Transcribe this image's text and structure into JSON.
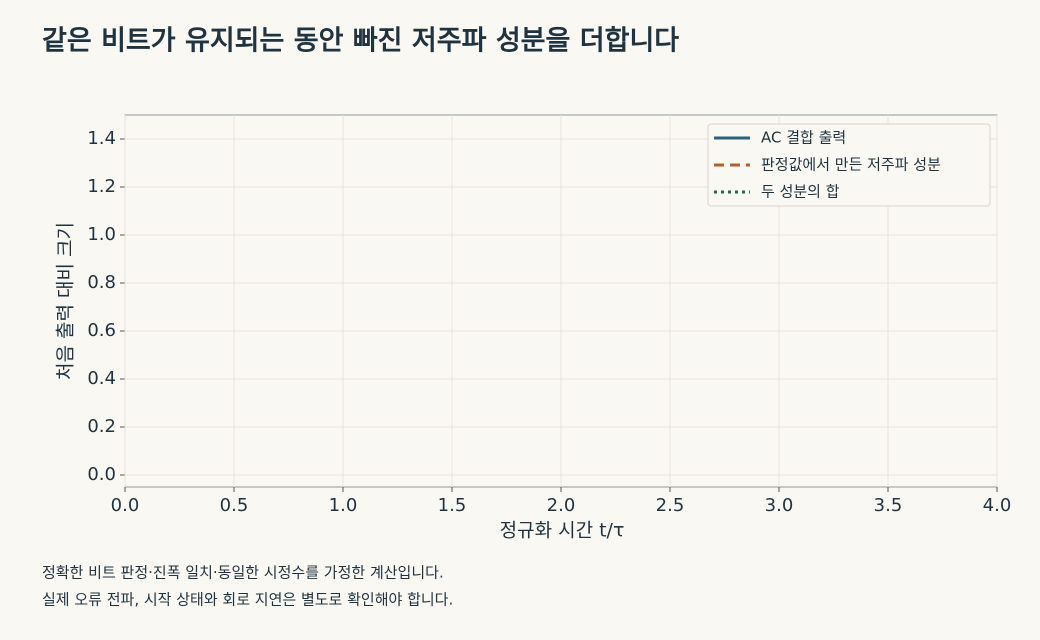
{
  "chart_data": {
    "type": "line",
    "title": "같은 비트가 유지되는 동안 빠진 저주파 성분을 더합니다",
    "xlabel": "정규화 시간 t/τ",
    "ylabel": "처음 출력 대비 크기",
    "x": [],
    "series": [
      {
        "name": "AC 결합 출력",
        "color": "#2b6478",
        "dash": "solid",
        "values": []
      },
      {
        "name": "판정값에서 만든 저주파 성분",
        "color": "#b5602a",
        "dash": "dashed",
        "values": []
      },
      {
        "name": "두 성분의 합",
        "color": "#1f6b4a",
        "dash": "dotted",
        "values": []
      }
    ],
    "xlim": [
      0,
      4
    ],
    "ylim": [
      -0.05,
      1.5
    ],
    "xticks": [
      {
        "value": 0,
        "label": "0.0"
      },
      {
        "value": 0.5,
        "label": "0.5"
      },
      {
        "value": 1,
        "label": "1.0"
      },
      {
        "value": 1.5,
        "label": "1.5"
      },
      {
        "value": 2,
        "label": "2.0"
      },
      {
        "value": 2.5,
        "label": "2.5"
      },
      {
        "value": 3,
        "label": "3.0"
      },
      {
        "value": 3.5,
        "label": "3.5"
      },
      {
        "value": 4,
        "label": "4.0"
      }
    ],
    "yticks": [
      {
        "value": 0,
        "label": "0.0"
      },
      {
        "value": 0.2,
        "label": "0.2"
      },
      {
        "value": 0.4,
        "label": "0.4"
      },
      {
        "value": 0.6,
        "label": "0.6"
      },
      {
        "value": 0.8,
        "label": "0.8"
      },
      {
        "value": 1,
        "label": "1.0"
      },
      {
        "value": 1.2,
        "label": "1.2"
      },
      {
        "value": 1.4,
        "label": "1.4"
      }
    ],
    "grid": true,
    "legend": "upper right",
    "notes": [
      "정확한 비트 판정·진폭 일치·동일한 시정수를 가정한 계산입니다.",
      "실제 오류 전파, 시작 상태와 회로 지연은 별도로 확인해야 합니다."
    ]
  }
}
